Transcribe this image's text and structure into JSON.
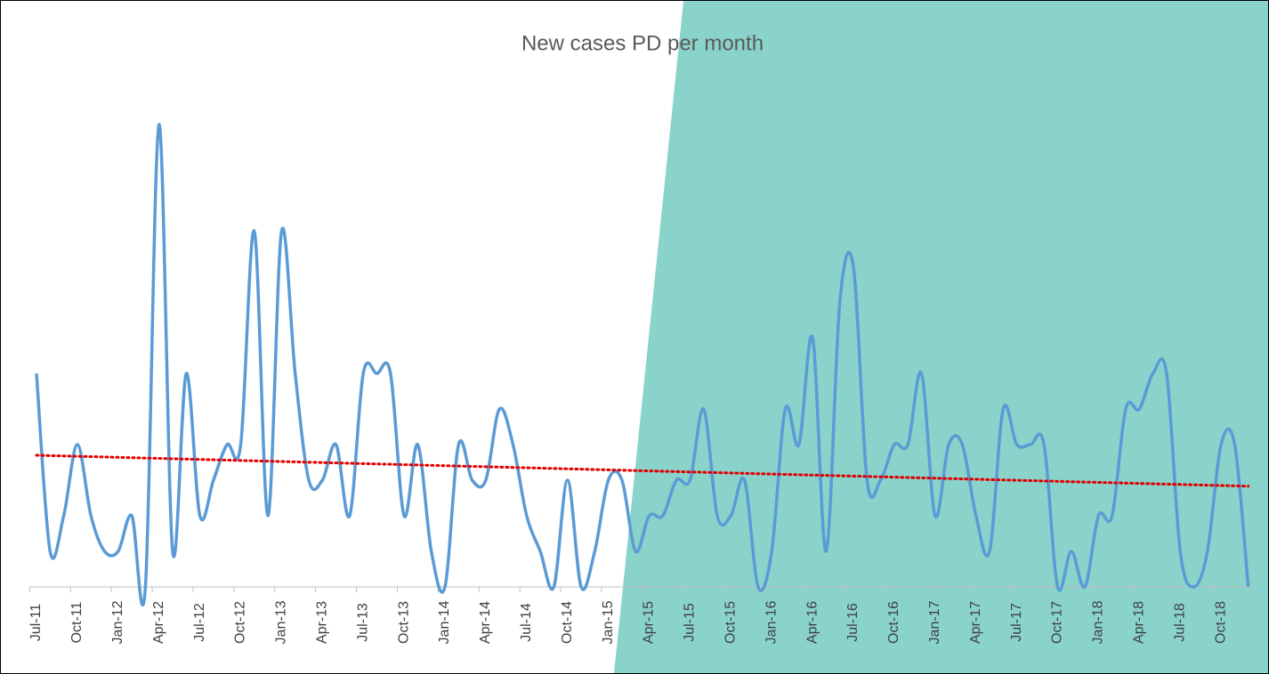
{
  "chart_data": {
    "type": "line",
    "title": "New cases PD per month",
    "categories": [
      "Jul-11",
      null,
      null,
      "Oct-11",
      null,
      null,
      "Jan-12",
      null,
      null,
      "Apr-12",
      null,
      null,
      "Jul-12",
      null,
      null,
      "Oct-12",
      null,
      null,
      "Jan-13",
      null,
      null,
      "Apr-13",
      null,
      null,
      "Jul-13",
      null,
      null,
      "Oct-13",
      null,
      null,
      "Jan-14",
      null,
      null,
      "Apr-14",
      null,
      null,
      "Jul-14",
      null,
      null,
      "Oct-14",
      null,
      null,
      "Jan-15",
      null,
      null,
      "Apr-15",
      null,
      null,
      "Jul-15",
      null,
      null,
      "Oct-15",
      null,
      null,
      "Jan-16",
      null,
      null,
      "Apr-16",
      null,
      null,
      "Jul-16",
      null,
      null,
      "Oct-16",
      null,
      null,
      "Jan-17",
      null,
      null,
      "Apr-17",
      null,
      null,
      "Jul-17",
      null,
      null,
      "Oct-17",
      null,
      null,
      "Jan-18",
      null,
      null,
      "Apr-18",
      null,
      null,
      "Jul-18",
      null,
      null,
      "Oct-18",
      null,
      null
    ],
    "series": [
      {
        "color": "#5b9bd5",
        "values": [
          6,
          1,
          2,
          4,
          2,
          1,
          1,
          2,
          0,
          13,
          1,
          6,
          2,
          3,
          4,
          4,
          10,
          2,
          10,
          6,
          3,
          3,
          4,
          2,
          6,
          6,
          6,
          2,
          4,
          1,
          0,
          4,
          3,
          3,
          5,
          4,
          2,
          1,
          0,
          3,
          0,
          1,
          3,
          3,
          1,
          2,
          2,
          3,
          3,
          5,
          2,
          2,
          3,
          0,
          1,
          5,
          4,
          7,
          1,
          8,
          9,
          3,
          3,
          4,
          4,
          6,
          2,
          4,
          4,
          2,
          1,
          5,
          4,
          4,
          4,
          0,
          1,
          0,
          2,
          2,
          5,
          5,
          6,
          6,
          1,
          0,
          1,
          4,
          4,
          0
        ]
      }
    ],
    "trendline": {
      "color": "#e00000",
      "start": 3.7,
      "end": 2.83
    },
    "ylim": [
      0,
      14
    ]
  }
}
